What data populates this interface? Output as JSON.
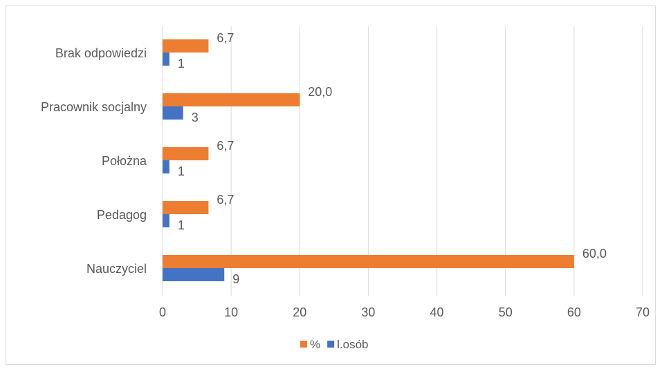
{
  "chart_data": {
    "type": "bar",
    "orientation": "horizontal",
    "categories": [
      "Brak odpowiedzi",
      "Pracownik socjalny",
      "Położna",
      "Pedagog",
      "Nauczyciel"
    ],
    "series": [
      {
        "name": "%",
        "values": [
          6.7,
          20.0,
          6.7,
          6.7,
          60.0
        ],
        "labels": [
          "6,7",
          "20,0",
          "6,7",
          "6,7",
          "60,0"
        ],
        "color": "#ED7D31"
      },
      {
        "name": "l.osób",
        "values": [
          1,
          3,
          1,
          1,
          9
        ],
        "labels": [
          "1",
          "3",
          "1",
          "1",
          "9"
        ],
        "color": "#4472C4"
      }
    ],
    "xlim": [
      0,
      70
    ],
    "xticks": [
      "0",
      "10",
      "20",
      "30",
      "40",
      "50",
      "60",
      "70"
    ],
    "grid": true,
    "legend": "bottom"
  }
}
